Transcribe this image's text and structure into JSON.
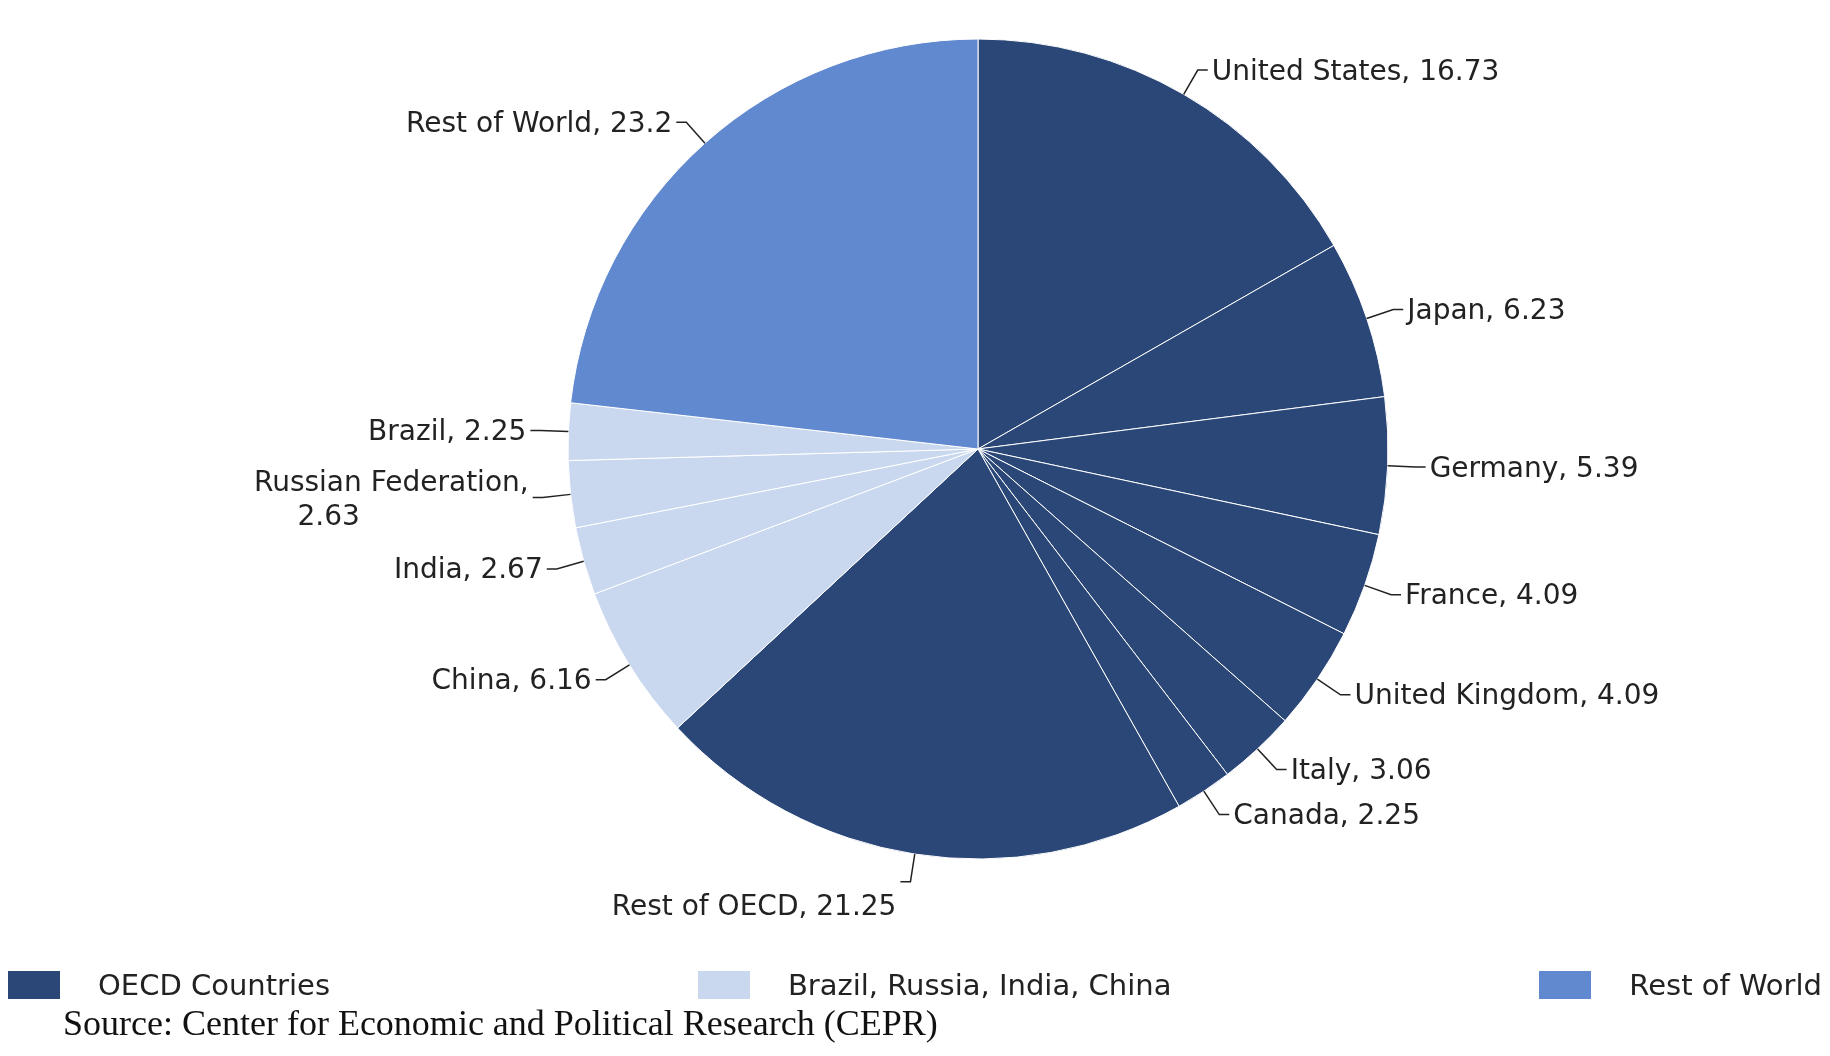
{
  "chart_data": {
    "type": "pie",
    "categories": [
      "United States",
      "Japan",
      "Germany",
      "France",
      "United Kingdom",
      "Italy",
      "Canada",
      "Rest of OECD",
      "China",
      "India",
      "Russian Federation",
      "Brazil",
      "Rest of World"
    ],
    "values": [
      16.73,
      6.23,
      5.39,
      4.09,
      4.09,
      3.06,
      2.25,
      21.25,
      6.16,
      2.67,
      2.63,
      2.25,
      23.2
    ],
    "colors": [
      "#2b4778",
      "#2b4778",
      "#2b4778",
      "#2b4778",
      "#2b4778",
      "#2b4778",
      "#2b4778",
      "#2b4778",
      "#c9d7ef",
      "#c9d7ef",
      "#c9d7ef",
      "#c9d7ef",
      "#6189cf"
    ],
    "value_labels": [
      ", 16.73",
      ", 6.23",
      ", 5.39",
      ", 4.09",
      ", 4.09",
      ", 3.06",
      ", 2.25",
      ", 21.25",
      ", 6.16",
      ", 2.67",
      ", 2.63",
      ", 2.25",
      ", 23.2"
    ],
    "legend": "bottom",
    "annotations": [
      "OECD Countries",
      "Brazil, Russia, India, China",
      "Rest of World",
      "Source: Center for Economic and Political Research (CEPR)"
    ]
  }
}
